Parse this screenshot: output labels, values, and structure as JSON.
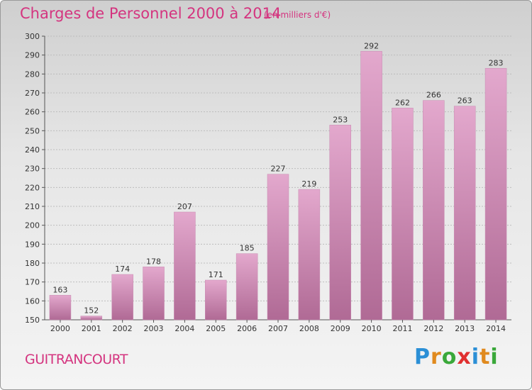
{
  "title": "Charges de Personnel 2000 à 2014",
  "subtitle": "(en milliers d'€)",
  "commune": "GUITRANCOURT",
  "logo": {
    "letters": [
      "P",
      "r",
      "o",
      "x",
      "i",
      "t",
      "i"
    ],
    "colors": [
      "#2b8fd6",
      "#e08a1e",
      "#3aa83a",
      "#e03030",
      "#2b8fd6",
      "#e08a1e",
      "#3aa83a"
    ]
  },
  "colors": {
    "bar_top": "#e3a8cd",
    "bar_bottom": "#b06a95",
    "accent": "#d4347f"
  },
  "chart_data": {
    "type": "bar",
    "categories": [
      "2000",
      "2001",
      "2002",
      "2003",
      "2004",
      "2005",
      "2006",
      "2007",
      "2008",
      "2009",
      "2010",
      "2011",
      "2012",
      "2013",
      "2014"
    ],
    "values": [
      163,
      152,
      174,
      178,
      207,
      171,
      185,
      227,
      219,
      253,
      292,
      262,
      266,
      263,
      283
    ],
    "title": "Charges de Personnel 2000 à 2014",
    "ylim": [
      150,
      300
    ],
    "yticks": [
      150,
      160,
      170,
      180,
      190,
      200,
      210,
      220,
      230,
      240,
      250,
      260,
      270,
      280,
      290,
      300
    ],
    "grid": true
  }
}
